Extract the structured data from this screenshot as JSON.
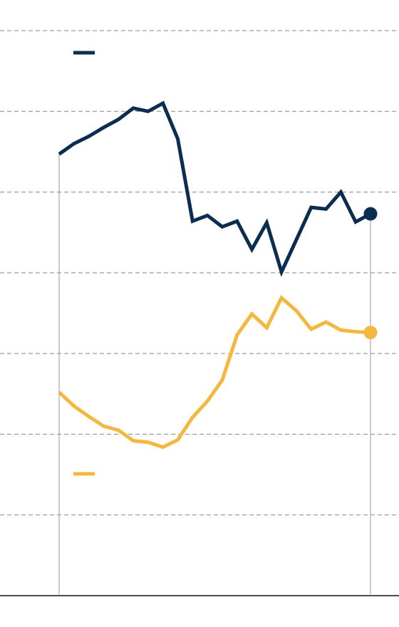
{
  "chart_data": {
    "type": "line",
    "categories": [
      null,
      null,
      null,
      null,
      null,
      null,
      null,
      null,
      null,
      null,
      null,
      null,
      null,
      null,
      null,
      null,
      null,
      null,
      null,
      null,
      null,
      null
    ],
    "series": [
      {
        "color": "#0b2d52",
        "values": [
          5.47,
          5.6,
          5.69,
          5.8,
          5.9,
          6.04,
          6.0,
          6.1,
          5.66,
          4.64,
          4.71,
          4.57,
          4.64,
          4.29,
          4.62,
          4.01,
          4.41,
          4.81,
          4.79,
          5.0,
          4.63,
          4.73
        ]
      },
      {
        "color": "#f2b840",
        "values": [
          2.52,
          2.35,
          2.22,
          2.1,
          2.05,
          1.92,
          1.9,
          1.84,
          1.93,
          2.21,
          2.41,
          2.67,
          3.23,
          3.49,
          3.32,
          3.69,
          3.53,
          3.3,
          3.39,
          3.29,
          3.27,
          3.26
        ]
      }
    ],
    "ylim": [
      0,
      7
    ],
    "yticks": [
      1,
      2,
      3,
      4,
      5,
      6,
      7
    ],
    "grid": true
  }
}
